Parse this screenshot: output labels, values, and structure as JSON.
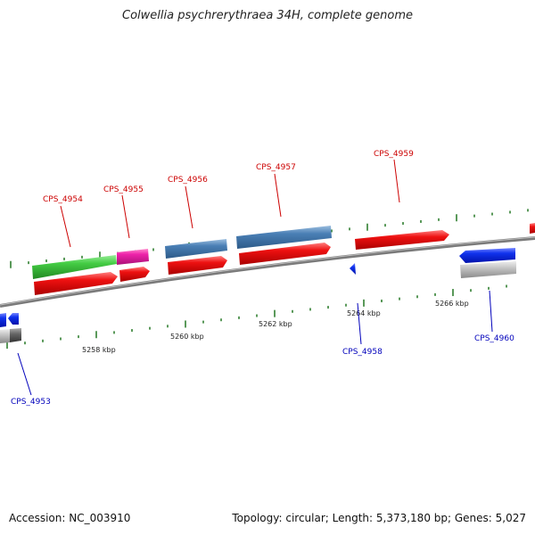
{
  "title": "Colwellia psychrerythraea 34H, complete genome",
  "accession": "Accession: NC_003910",
  "summary": "Topology: circular; Length: 5,373,180 bp; Genes: 5,027",
  "colors": {
    "label_top": "#cc0000",
    "label_bottom": "#0000bb",
    "cds_red": "#ee1111",
    "gene_green": "#44cc44",
    "gene_magenta": "#ee22aa",
    "gene_steelblue": "#4a7fb5",
    "gene_blue": "#1133ee",
    "gene_gray": "#b8b8b8",
    "gene_darkgray": "#666666",
    "axis": "#888888",
    "tick": "#227722"
  },
  "coord_labels": [
    "5258 kbp",
    "5260 kbp",
    "5262 kbp",
    "5264 kbp",
    "5266 kbp"
  ],
  "gene_labels": {
    "top": [
      "CPS_4954",
      "CPS_4955",
      "CPS_4956",
      "CPS_4957",
      "CPS_4959"
    ],
    "bottom": [
      "CPS_4953",
      "CPS_4958",
      "CPS_4960"
    ]
  }
}
